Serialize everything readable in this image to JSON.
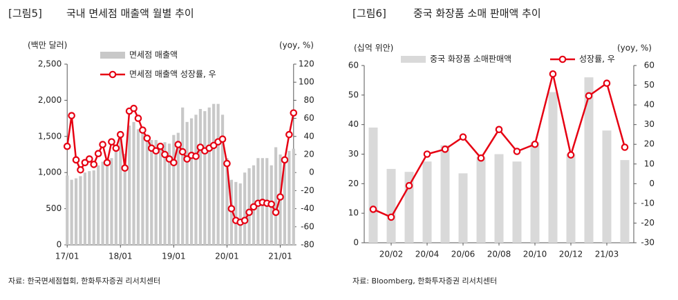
{
  "chart_data": [
    {
      "type": "combo",
      "figure_label": "[그림5]",
      "title": "국내 면세점 매출액 월별 추이",
      "y_label": "(백만 달러)",
      "y2_label": "(yoy, %)",
      "source": "자료: 한국면세점협회, 한화투자증권 리서치센터",
      "legend": "left",
      "categories": [
        "17/01",
        null,
        null,
        null,
        null,
        null,
        null,
        null,
        null,
        null,
        null,
        null,
        "18/01",
        null,
        null,
        null,
        null,
        null,
        null,
        null,
        null,
        null,
        null,
        null,
        "19/01",
        null,
        null,
        null,
        null,
        null,
        null,
        null,
        null,
        null,
        null,
        null,
        "20/01",
        null,
        null,
        null,
        null,
        null,
        null,
        null,
        null,
        null,
        null,
        null,
        "21/01",
        null,
        null,
        null
      ],
      "series": [
        {
          "name": "면세점 매출액",
          "type": "bar",
          "color": "#c8c8c8",
          "values": [
            960,
            900,
            920,
            950,
            1000,
            1020,
            1030,
            1100,
            1150,
            1150,
            1200,
            1300,
            1500,
            1260,
            1650,
            1700,
            1600,
            1560,
            1500,
            1450,
            1450,
            1400,
            1420,
            1400,
            1520,
            1550,
            1900,
            1700,
            1750,
            1800,
            1880,
            1850,
            1900,
            1950,
            1950,
            1800,
            1200,
            900,
            870,
            850,
            1000,
            1060,
            1100,
            1200,
            1200,
            1200,
            1100,
            1350,
            1250,
            1200,
            1300,
            1330
          ]
        },
        {
          "name": "면세점 매출액 성장률, 우",
          "type": "line",
          "axis": "y2",
          "color": "#e60012",
          "values": [
            29,
            63,
            14,
            3,
            11,
            15,
            9,
            21,
            31,
            11,
            34,
            27,
            42,
            5,
            68,
            71,
            60,
            47,
            38,
            27,
            24,
            29,
            20,
            15,
            11,
            31,
            23,
            15,
            19,
            18,
            28,
            24,
            27,
            30,
            34,
            37,
            10,
            -40,
            -53,
            -55,
            -53,
            -44,
            -38,
            -34,
            -33,
            -34,
            -35,
            -44,
            -27,
            14,
            42,
            66
          ]
        }
      ],
      "ylim": [
        0,
        2500
      ],
      "yticks": [
        0,
        500,
        {
          "value": 1000,
          "label": "1,000"
        },
        {
          "value": 1500,
          "label": "1,500"
        },
        {
          "value": 2000,
          "label": "2,000"
        },
        {
          "value": 2500,
          "label": "2,500"
        }
      ],
      "y2lim": [
        -80,
        120
      ],
      "y2ticks": [
        -80,
        -60,
        -40,
        -20,
        0,
        20,
        40,
        60,
        80,
        100,
        120
      ]
    },
    {
      "type": "combo",
      "figure_label": "[그림6]",
      "title": "중국 화장품 소매 판매액 추이",
      "y_label": "(십억 위안)",
      "y2_label": "(yoy, %)",
      "source": "자료: Bloomberg, 한화투자증권 리서치센터",
      "legend": "top",
      "categories": [
        null,
        "20/02",
        null,
        "20/04",
        null,
        "20/06",
        null,
        "20/08",
        null,
        "20/10",
        null,
        "20/12",
        null,
        "21/03",
        null
      ],
      "series": [
        {
          "name": "중국 화장품 소매판매액",
          "type": "bar",
          "color": "#d9d9d9",
          "values": [
            39,
            25,
            24,
            27.5,
            33,
            23.5,
            29,
            30,
            27.5,
            34,
            51,
            30,
            56,
            38,
            28
          ]
        },
        {
          "name": "성장률, 우",
          "type": "line",
          "axis": "y2",
          "color": "#e60012",
          "values": [
            -13,
            -17,
            -1,
            15,
            17.5,
            23.7,
            13,
            27.5,
            16.4,
            20,
            55.7,
            14.6,
            44.6,
            51,
            18.5
          ]
        }
      ],
      "ylim": [
        0,
        60
      ],
      "yticks": [
        0,
        10,
        20,
        30,
        40,
        50,
        60
      ],
      "y2lim": [
        -30,
        60
      ],
      "y2ticks": [
        -30,
        -20,
        -10,
        0,
        10,
        20,
        30,
        40,
        50,
        60
      ]
    }
  ]
}
